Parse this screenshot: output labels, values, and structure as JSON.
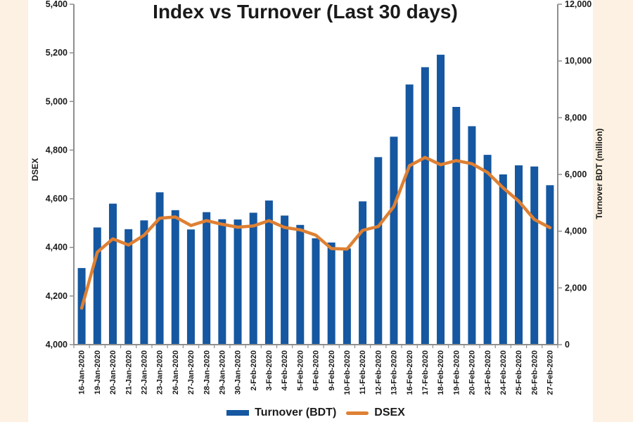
{
  "page": {
    "background_color": "#FCF1E2",
    "panel_color": "#FFFFFF",
    "axis_color": "#8E8E8E",
    "text_color": "#1A1A1A"
  },
  "chart_data": {
    "type": "bar",
    "subtype": "combo-bar-line-dual-axis",
    "title": "Index vs Turnover (Last 30 days)",
    "categories": [
      "16-Jan-2020",
      "19-Jan-2020",
      "20-Jan-2020",
      "21-Jan-2020",
      "22-Jan-2020",
      "23-Jan-2020",
      "26-Jan-2020",
      "27-Jan-2020",
      "28-Jan-2020",
      "29-Jan-2020",
      "30-Jan-2020",
      "2-Feb-2020",
      "3-Feb-2020",
      "4-Feb-2020",
      "5-Feb-2020",
      "6-Feb-2020",
      "9-Feb-2020",
      "10-Feb-2020",
      "11-Feb-2020",
      "12-Feb-2020",
      "13-Feb-2020",
      "16-Feb-2020",
      "17-Feb-2020",
      "18-Feb-2020",
      "19-Feb-2020",
      "20-Feb-2020",
      "23-Feb-2020",
      "24-Feb-2020",
      "25-Feb-2020",
      "26-Feb-2020",
      "27-Feb-2020"
    ],
    "series": [
      {
        "name": "Turnover (BDT)",
        "type": "bar",
        "axis": "right",
        "color": "#1557A0",
        "values": [
          2700,
          4130,
          4970,
          4070,
          4380,
          5370,
          4740,
          4060,
          4670,
          4420,
          4410,
          4650,
          5080,
          4550,
          4220,
          3750,
          3600,
          3390,
          5050,
          6610,
          7330,
          9170,
          9780,
          10220,
          8380,
          7700,
          6690,
          6000,
          6320,
          6280,
          5620
        ]
      },
      {
        "name": "DSEX",
        "type": "line",
        "axis": "left",
        "color": "#DE8033",
        "values": [
          4150,
          4380,
          4435,
          4410,
          4450,
          4520,
          4525,
          4490,
          4510,
          4495,
          4483,
          4488,
          4510,
          4482,
          4472,
          4450,
          4395,
          4393,
          4470,
          4486,
          4568,
          4736,
          4770,
          4740,
          4757,
          4744,
          4708,
          4645,
          4590,
          4515,
          4481
        ]
      }
    ],
    "left_axis": {
      "label": "DSEX",
      "min": 4000,
      "max": 5400,
      "tick_step": 200,
      "tick_labels": [
        "4,000",
        "4,200",
        "4,400",
        "4,600",
        "4,800",
        "5,000",
        "5,200",
        "5,400"
      ]
    },
    "right_axis": {
      "label": "Turnover BDT (million)",
      "min": 0,
      "max": 12000,
      "tick_step": 2000,
      "tick_labels": [
        "0",
        "2,000",
        "4,000",
        "6,000",
        "8,000",
        "10,000",
        "12,000"
      ]
    },
    "grid": "off",
    "legend_position": "bottom-center"
  }
}
